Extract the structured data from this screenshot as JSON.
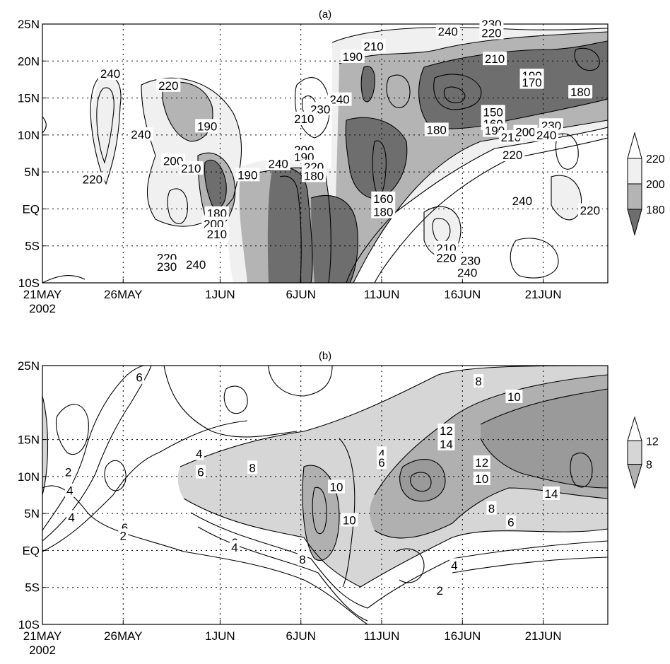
{
  "chart_data": [
    {
      "type": "heatmap",
      "title": "(a)",
      "xlabel": "",
      "ylabel": "",
      "x_ticks": [
        "21MAY\n2002",
        "26MAY",
        "1JUN",
        "6JUN",
        "11JUN",
        "16JUN",
        "21JUN"
      ],
      "y_ticks": [
        "25N",
        "20N",
        "15N",
        "10N",
        "5N",
        "EQ",
        "5S",
        "10S"
      ],
      "x_range_days": [
        0,
        35
      ],
      "y_range": [
        -10,
        25
      ],
      "grid": true,
      "legend": {
        "position": "right",
        "type": "shaded-colorbar",
        "entries": [
          "220",
          "200",
          "180"
        ],
        "shades": [
          "#ffffff",
          "#f0f0f0",
          "#b4b4b4",
          "#6e6e6e"
        ]
      },
      "contour_levels": [
        150,
        160,
        170,
        180,
        190,
        200,
        210,
        220,
        230,
        240
      ],
      "contour_labels": [
        {
          "text": "240",
          "day": 4.2,
          "lat": 18.3
        },
        {
          "text": "240",
          "day": 6.1,
          "lat": 10.1
        },
        {
          "text": "220",
          "day": 3.1,
          "lat": 4.0
        },
        {
          "text": "220",
          "day": 7.8,
          "lat": 16.7
        },
        {
          "text": "200",
          "day": 8.1,
          "lat": 6.5
        },
        {
          "text": "210",
          "day": 9.2,
          "lat": 5.5
        },
        {
          "text": "190",
          "day": 10.2,
          "lat": 11.2
        },
        {
          "text": "190",
          "day": 12.7,
          "lat": 4.6
        },
        {
          "text": "240",
          "day": 14.6,
          "lat": 6.1
        },
        {
          "text": "180",
          "day": 10.8,
          "lat": -0.6
        },
        {
          "text": "200",
          "day": 10.6,
          "lat": -2.0
        },
        {
          "text": "210",
          "day": 10.8,
          "lat": -3.4
        },
        {
          "text": "220",
          "day": 7.7,
          "lat": -6.6
        },
        {
          "text": "230",
          "day": 7.7,
          "lat": -7.8
        },
        {
          "text": "240",
          "day": 9.5,
          "lat": -7.5
        },
        {
          "text": "240",
          "day": 18.4,
          "lat": 14.8
        },
        {
          "text": "230",
          "day": 17.2,
          "lat": 13.5
        },
        {
          "text": "210",
          "day": 16.2,
          "lat": 12.2
        },
        {
          "text": "200",
          "day": 16.2,
          "lat": 8.0
        },
        {
          "text": "190",
          "day": 16.2,
          "lat": 7.0
        },
        {
          "text": "220",
          "day": 16.8,
          "lat": 5.7
        },
        {
          "text": "180",
          "day": 16.8,
          "lat": 4.5
        },
        {
          "text": "190",
          "day": 19.2,
          "lat": 20.6
        },
        {
          "text": "210",
          "day": 20.5,
          "lat": 22.0
        },
        {
          "text": "160",
          "day": 21.1,
          "lat": 1.4
        },
        {
          "text": "180",
          "day": 21.1,
          "lat": -0.4
        },
        {
          "text": "240",
          "day": 25.1,
          "lat": 24.0
        },
        {
          "text": "230",
          "day": 27.8,
          "lat": 25.0
        },
        {
          "text": "220",
          "day": 27.8,
          "lat": 23.8
        },
        {
          "text": "210",
          "day": 28.0,
          "lat": 20.3
        },
        {
          "text": "190",
          "day": 30.3,
          "lat": 18.0
        },
        {
          "text": "170",
          "day": 30.3,
          "lat": 17.1
        },
        {
          "text": "180",
          "day": 33.3,
          "lat": 15.8
        },
        {
          "text": "150",
          "day": 27.9,
          "lat": 13.1
        },
        {
          "text": "180",
          "day": 24.4,
          "lat": 10.7
        },
        {
          "text": "160",
          "day": 27.9,
          "lat": 11.5
        },
        {
          "text": "190",
          "day": 28.0,
          "lat": 10.6
        },
        {
          "text": "210",
          "day": 29.0,
          "lat": 9.7
        },
        {
          "text": "200",
          "day": 29.9,
          "lat": 10.4
        },
        {
          "text": "220",
          "day": 29.1,
          "lat": 7.3
        },
        {
          "text": "230",
          "day": 31.5,
          "lat": 11.3
        },
        {
          "text": "240",
          "day": 31.2,
          "lat": 10.0
        },
        {
          "text": "240",
          "day": 29.7,
          "lat": 1.1
        },
        {
          "text": "220",
          "day": 33.9,
          "lat": -0.2
        },
        {
          "text": "210",
          "day": 25.0,
          "lat": -5.3
        },
        {
          "text": "220",
          "day": 25.0,
          "lat": -6.6
        },
        {
          "text": "230",
          "day": 26.5,
          "lat": -7.0
        },
        {
          "text": "240",
          "day": 26.3,
          "lat": -8.6
        }
      ]
    },
    {
      "type": "heatmap",
      "title": "(b)",
      "xlabel": "",
      "ylabel": "",
      "x_ticks": [
        "21MAY\n2002",
        "26MAY",
        "1JUN",
        "6JUN",
        "11JUN",
        "16JUN",
        "21JUN"
      ],
      "y_ticks": [
        "25N",
        "15N",
        "10N",
        "5N",
        "EQ",
        "5S",
        "10S"
      ],
      "x_range_days": [
        0,
        35
      ],
      "y_range": [
        -10,
        25
      ],
      "grid": true,
      "legend": {
        "position": "right",
        "type": "shaded-colorbar",
        "entries": [
          "12",
          "8"
        ],
        "shades": [
          "#ffffff",
          "#d6d6d6",
          "#b0b0b0"
        ]
      },
      "contour_levels": [
        2,
        4,
        6,
        8,
        10,
        12,
        14
      ],
      "contour_labels": [
        {
          "text": "6",
          "day": 6.0,
          "lat": 23.4
        },
        {
          "text": "2",
          "day": 1.6,
          "lat": 10.6
        },
        {
          "text": "4",
          "day": 1.7,
          "lat": 8.1
        },
        {
          "text": "4",
          "day": 1.8,
          "lat": 4.5
        },
        {
          "text": "6",
          "day": 5.1,
          "lat": 3.1
        },
        {
          "text": "2",
          "day": 5.0,
          "lat": 2.0
        },
        {
          "text": "4",
          "day": 9.7,
          "lat": 13.1
        },
        {
          "text": "6",
          "day": 9.8,
          "lat": 10.6
        },
        {
          "text": "8",
          "day": 13.0,
          "lat": 11.2
        },
        {
          "text": "6",
          "day": 11.9,
          "lat": 1.1
        },
        {
          "text": "4",
          "day": 11.9,
          "lat": 0.4
        },
        {
          "text": "8",
          "day": 16.1,
          "lat": -1.2
        },
        {
          "text": "10",
          "day": 18.2,
          "lat": 8.6
        },
        {
          "text": "10",
          "day": 19.0,
          "lat": 4.1
        },
        {
          "text": "4",
          "day": 21.0,
          "lat": 13.1
        },
        {
          "text": "6",
          "day": 21.0,
          "lat": 11.9
        },
        {
          "text": "12",
          "day": 25.0,
          "lat": 16.2
        },
        {
          "text": "14",
          "day": 25.0,
          "lat": 14.4
        },
        {
          "text": "8",
          "day": 27.0,
          "lat": 22.9
        },
        {
          "text": "10",
          "day": 29.2,
          "lat": 20.8
        },
        {
          "text": "12",
          "day": 27.2,
          "lat": 11.9
        },
        {
          "text": "10",
          "day": 27.2,
          "lat": 9.7
        },
        {
          "text": "14",
          "day": 31.5,
          "lat": 7.7
        },
        {
          "text": "8",
          "day": 27.8,
          "lat": 5.7
        },
        {
          "text": "6",
          "day": 29.0,
          "lat": 3.8
        },
        {
          "text": "4",
          "day": 25.5,
          "lat": -2.0
        },
        {
          "text": "2",
          "day": 24.6,
          "lat": -5.4
        }
      ]
    }
  ]
}
